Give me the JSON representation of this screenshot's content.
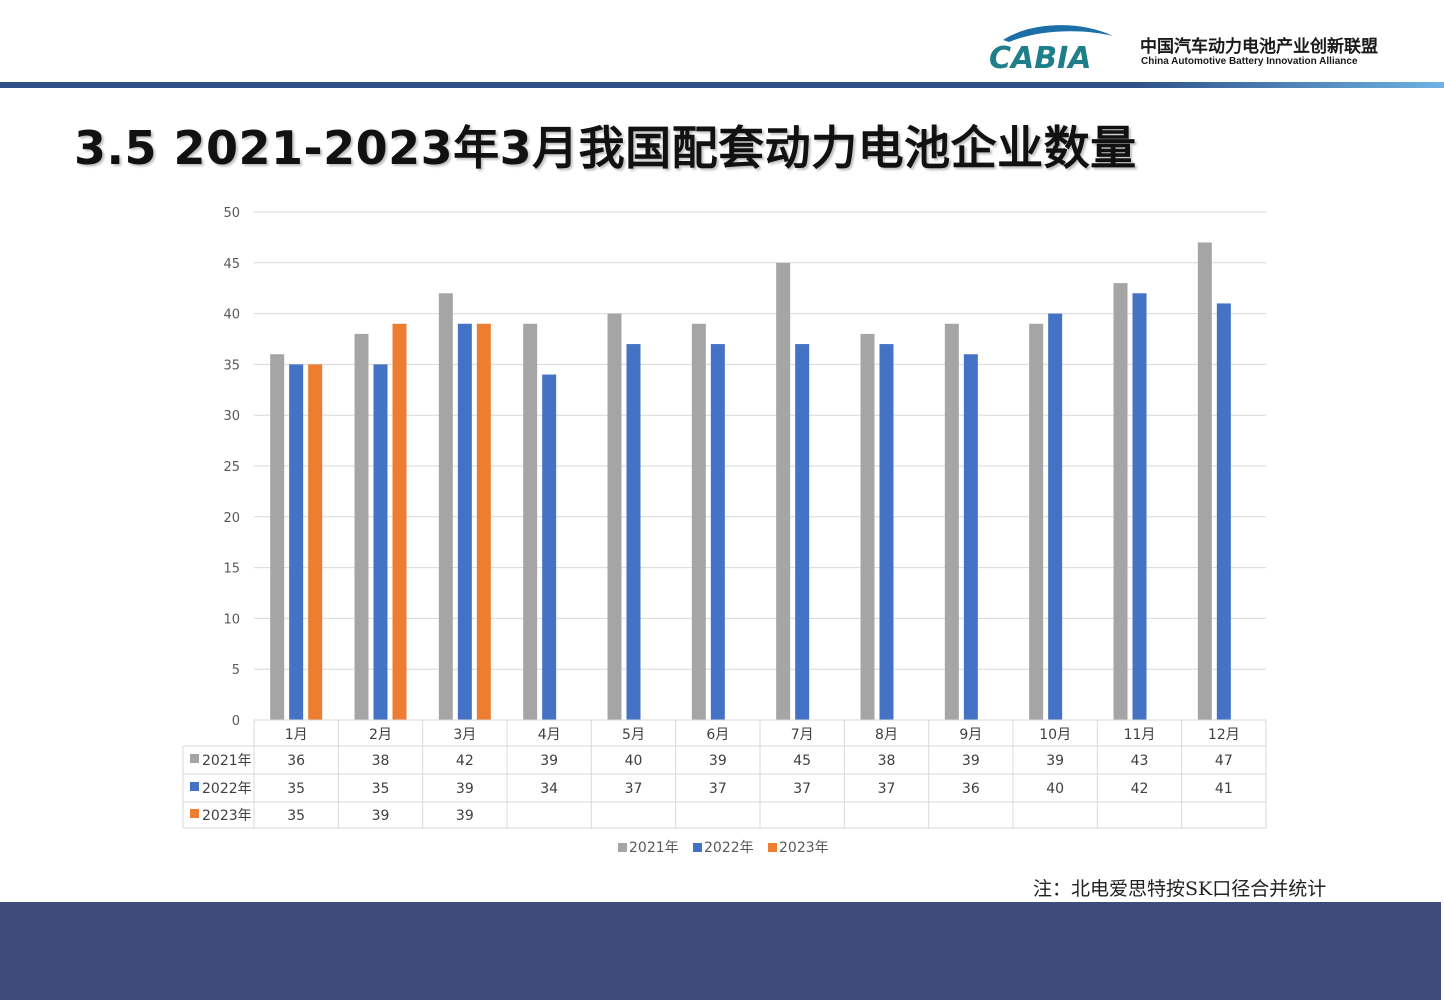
{
  "header": {
    "logo_wordmark": "CABIA",
    "org_name_cn": "中国汽车动力电池产业创新联盟",
    "org_name_en": "China Automotive Battery Innovation Alliance"
  },
  "page_title": "3.5 2021-2023年3月我国配套动力电池企业数量",
  "note": "注：北电爱思特按SK口径合并统计",
  "colors": {
    "s2021": "#a5a5a5",
    "s2022": "#4472c4",
    "s2023": "#ed7d31",
    "header_rule": "#2c4f85",
    "footer_band": "#3f4b7b"
  },
  "chart_data": {
    "type": "bar",
    "categories": [
      "1月",
      "2月",
      "3月",
      "4月",
      "5月",
      "6月",
      "7月",
      "8月",
      "9月",
      "10月",
      "11月",
      "12月"
    ],
    "series": [
      {
        "name": "2021年",
        "values": [
          36,
          38,
          42,
          39,
          40,
          39,
          45,
          38,
          39,
          39,
          43,
          47
        ]
      },
      {
        "name": "2022年",
        "values": [
          35,
          35,
          39,
          34,
          37,
          37,
          37,
          37,
          36,
          40,
          42,
          41
        ]
      },
      {
        "name": "2023年",
        "values": [
          35,
          39,
          39,
          null,
          null,
          null,
          null,
          null,
          null,
          null,
          null,
          null
        ]
      }
    ],
    "ylim": [
      0,
      50
    ],
    "yticks": [
      0,
      5,
      10,
      15,
      20,
      25,
      30,
      35,
      40,
      45,
      50
    ],
    "grid": true,
    "legend_position": "bottom",
    "data_table": true
  }
}
